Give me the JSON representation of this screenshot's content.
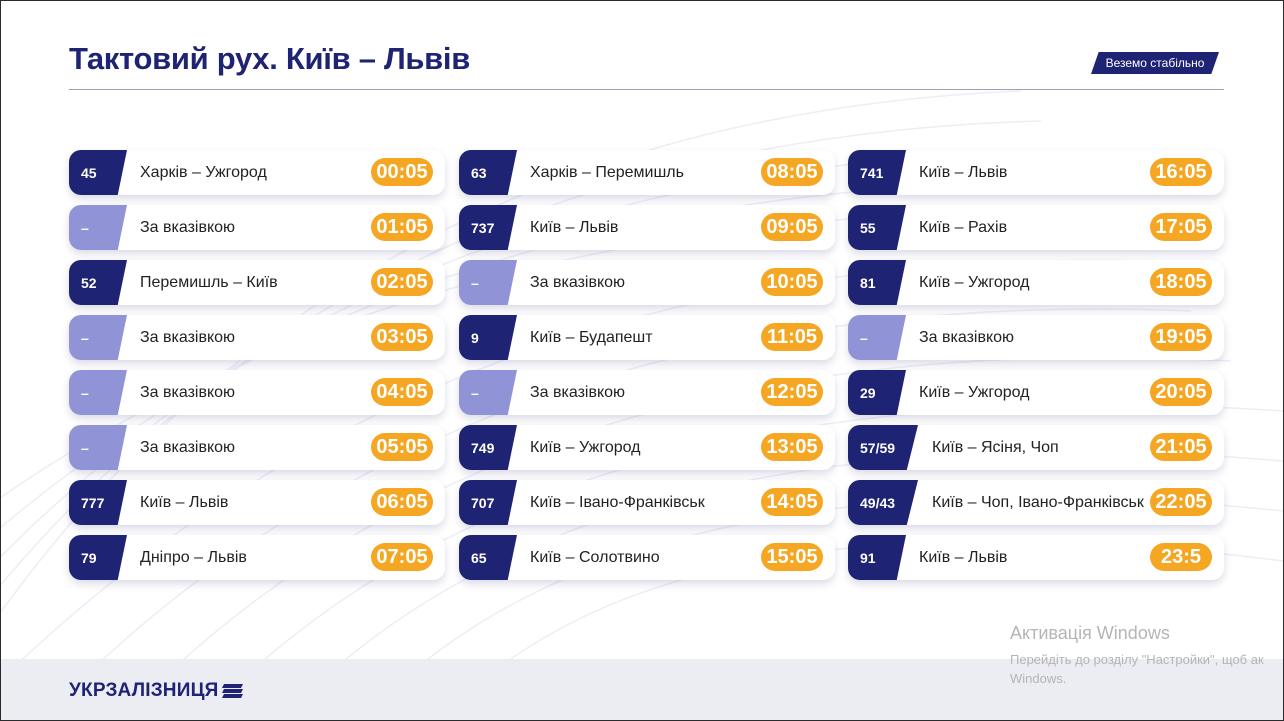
{
  "title": "Тактовий рух. Київ – Львів",
  "badge": "Веземо стабільно",
  "columns": [
    [
      {
        "num": "45",
        "route": "Харків – Ужгород",
        "time": "00:05",
        "light": false
      },
      {
        "num": "–",
        "route": "За вказівкою",
        "time": "01:05",
        "light": true
      },
      {
        "num": "52",
        "route": "Перемишль – Київ",
        "time": "02:05",
        "light": false
      },
      {
        "num": "–",
        "route": "За вказівкою",
        "time": "03:05",
        "light": true
      },
      {
        "num": "–",
        "route": "За вказівкою",
        "time": "04:05",
        "light": true
      },
      {
        "num": "–",
        "route": "За вказівкою",
        "time": "05:05",
        "light": true
      },
      {
        "num": "777",
        "route": "Київ – Львів",
        "time": "06:05",
        "light": false
      },
      {
        "num": "79",
        "route": "Дніпро – Львів",
        "time": "07:05",
        "light": false
      }
    ],
    [
      {
        "num": "63",
        "route": "Харків – Перемишль",
        "time": "08:05",
        "light": false
      },
      {
        "num": "737",
        "route": "Київ – Львів",
        "time": "09:05",
        "light": false
      },
      {
        "num": "–",
        "route": "За вказівкою",
        "time": "10:05",
        "light": true
      },
      {
        "num": "9",
        "route": "Київ – Будапешт",
        "time": "11:05",
        "light": false
      },
      {
        "num": "–",
        "route": "За вказівкою",
        "time": "12:05",
        "light": true
      },
      {
        "num": "749",
        "route": "Київ – Ужгород",
        "time": "13:05",
        "light": false
      },
      {
        "num": "707",
        "route": "Київ – Івано-Франківськ",
        "time": "14:05",
        "light": false
      },
      {
        "num": "65",
        "route": "Київ – Солотвино",
        "time": "15:05",
        "light": false
      }
    ],
    [
      {
        "num": "741",
        "route": "Київ – Львів",
        "time": "16:05",
        "light": false
      },
      {
        "num": "55",
        "route": "Київ – Рахів",
        "time": "17:05",
        "light": false
      },
      {
        "num": "81",
        "route": "Київ – Ужгород",
        "time": "18:05",
        "light": false
      },
      {
        "num": "–",
        "route": "За вказівкою",
        "time": "19:05",
        "light": true
      },
      {
        "num": "29",
        "route": "Київ – Ужгород",
        "time": "20:05",
        "light": false
      },
      {
        "num": "57/59",
        "route": "Київ – Ясіня, Чоп",
        "time": "21:05",
        "light": false
      },
      {
        "num": "49/43",
        "route": "Київ – Чоп, Івано-Франківськ",
        "time": "22:05",
        "light": false
      },
      {
        "num": "91",
        "route": "Київ – Львів",
        "time": "23:5",
        "light": false
      }
    ]
  ],
  "footer": {
    "logo_text": "УКРЗАЛІЗНИЦЯ"
  },
  "watermark": {
    "title": "Активація Windows",
    "line1": "Перейдіть до розділу \"Настройки\", щоб ак",
    "line2": "Windows."
  },
  "colors": {
    "brand": "#1f2373",
    "accent": "#f5a623",
    "placeholder": "#9093d6"
  }
}
